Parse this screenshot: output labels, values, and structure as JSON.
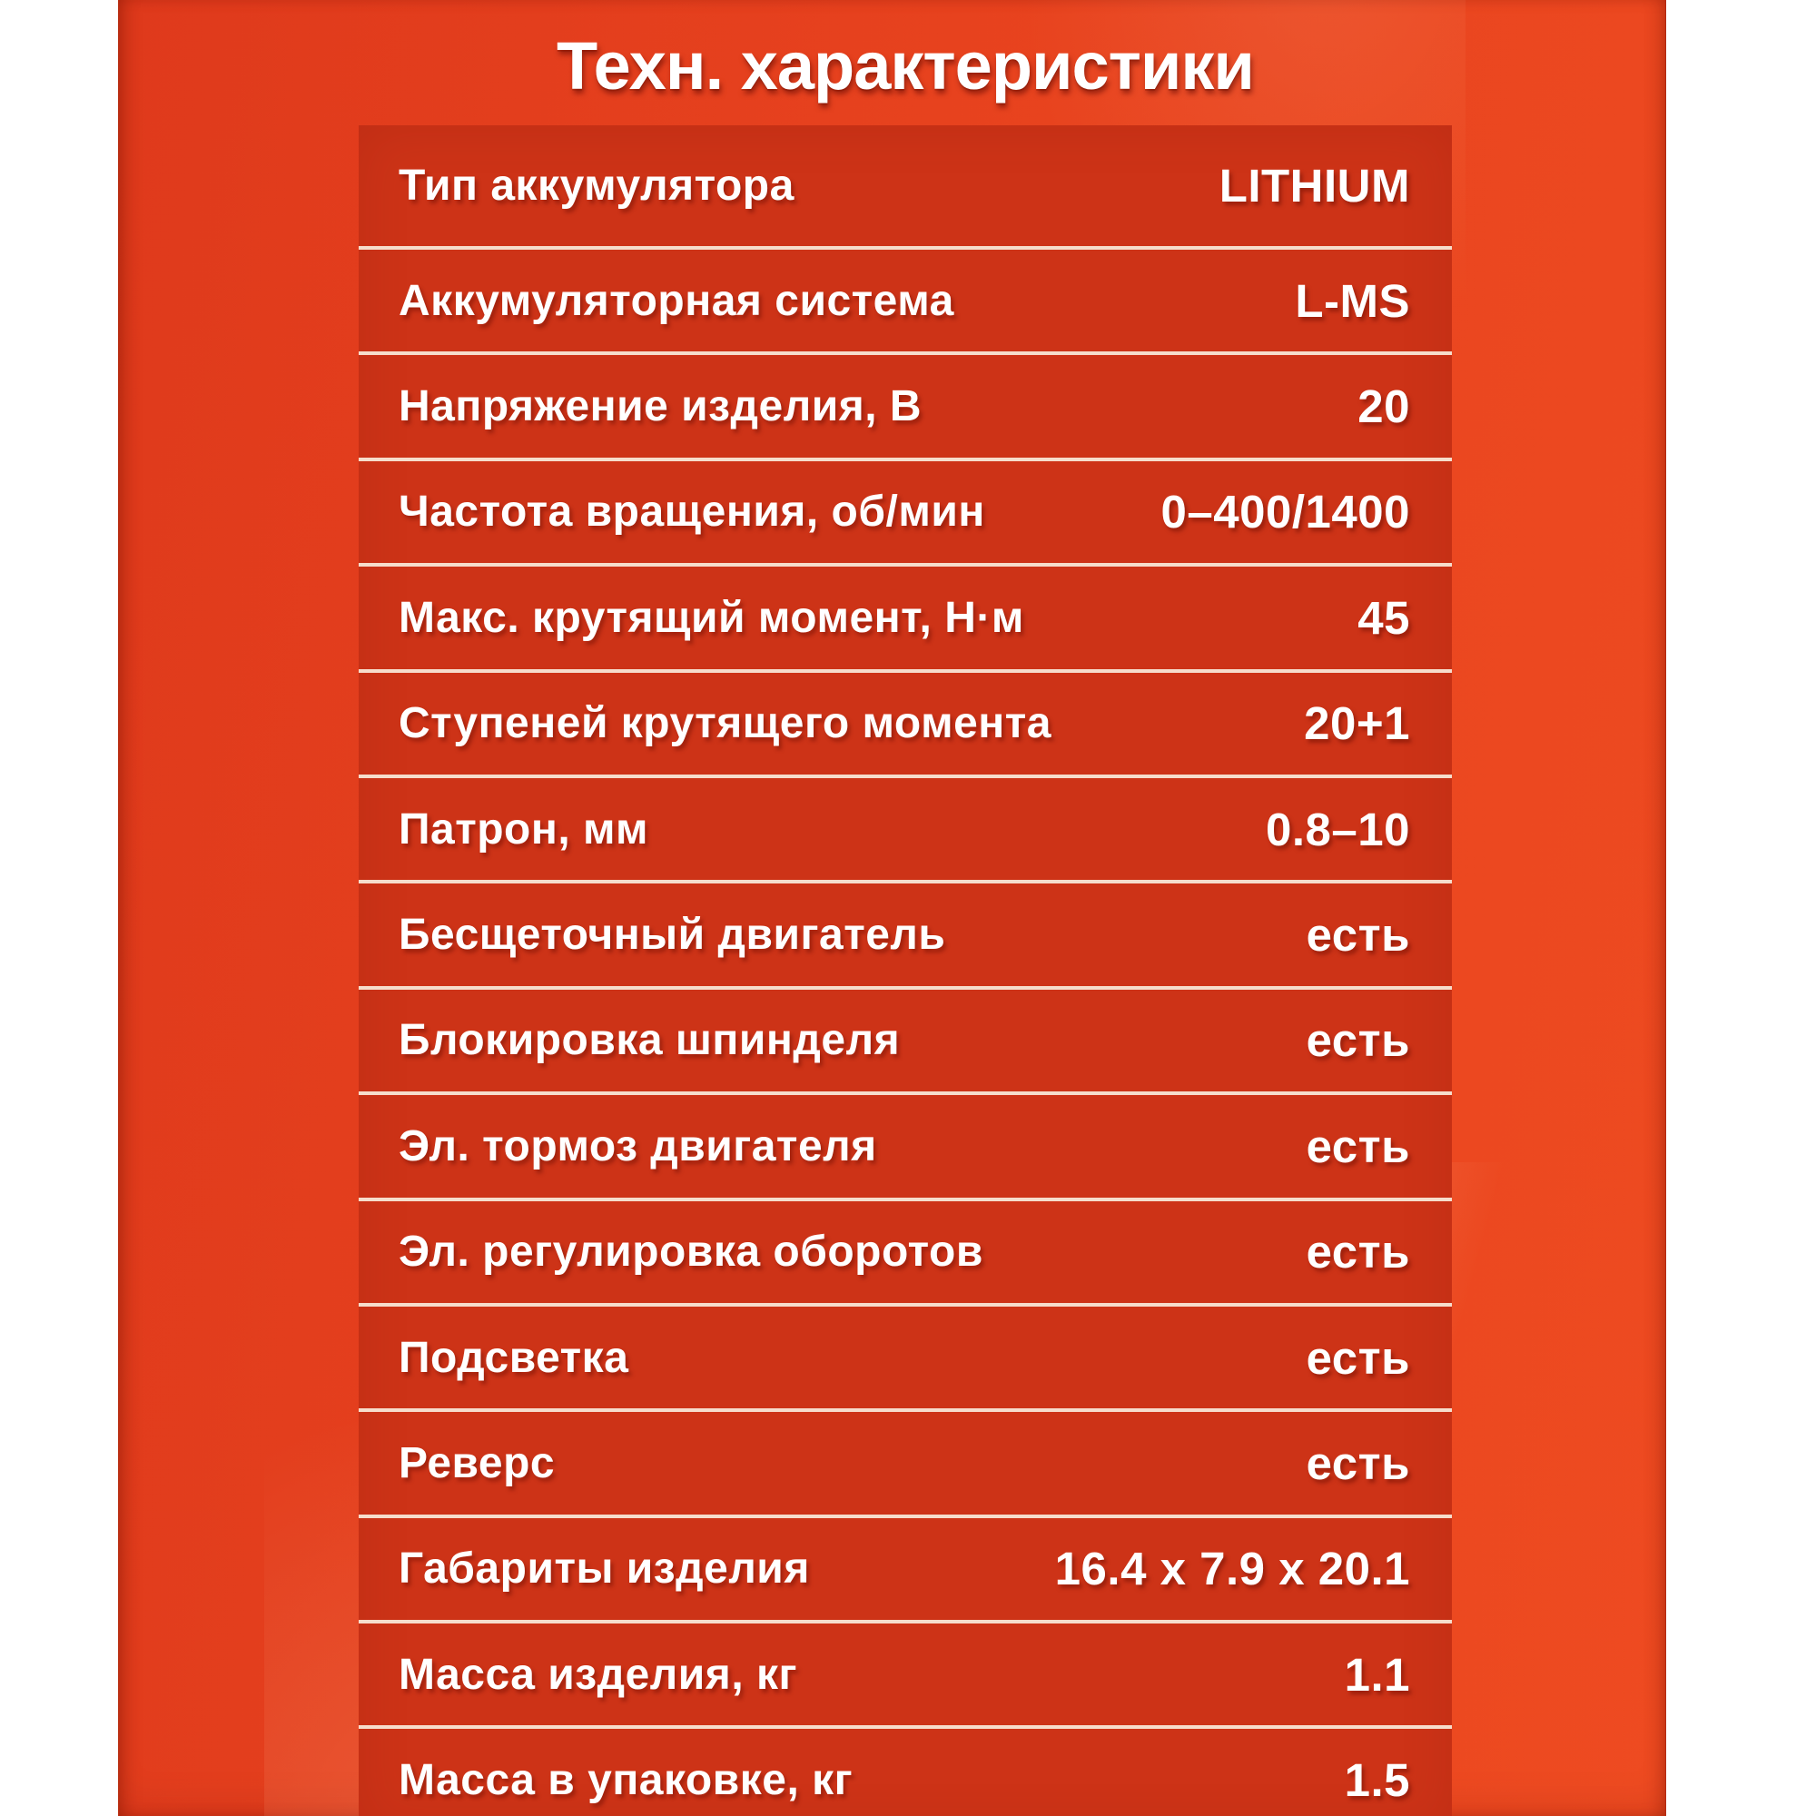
{
  "title": "Техн. характеристики",
  "table": {
    "rows": [
      {
        "label": "Тип аккумулятора",
        "value": "LITHIUM"
      },
      {
        "label": "Аккумуляторная система",
        "value": "L-MS"
      },
      {
        "label": "Напряжение изделия, В",
        "value": "20"
      },
      {
        "label": "Частота вращения, об/мин",
        "value": "0–400/1400"
      },
      {
        "label": "Макс. крутящий момент, Н·м",
        "value": "45"
      },
      {
        "label": "Ступеней крутящего момента",
        "value": "20+1"
      },
      {
        "label": "Патрон, мм",
        "value": "0.8–10"
      },
      {
        "label": "Бесщеточный двигатель",
        "value": "есть"
      },
      {
        "label": "Блокировка шпинделя",
        "value": "есть"
      },
      {
        "label": "Эл. тормоз двигателя",
        "value": "есть"
      },
      {
        "label": "Эл. регулировка оборотов",
        "value": "есть"
      },
      {
        "label": "Подсветка",
        "value": "есть"
      },
      {
        "label": "Реверс",
        "value": "есть"
      },
      {
        "label": "Габариты изделия",
        "value": "16.4 x 7.9 x 20.1"
      },
      {
        "label": "Масса изделия, кг",
        "value": "1.1"
      },
      {
        "label": "Масса в упаковке, кг",
        "value": "1.5"
      }
    ]
  },
  "colors": {
    "page_background": "#ffffff",
    "panel_red": "#e7421e",
    "panel_red_bright": "#ee4b21",
    "panel_red_deep": "#df3a1c",
    "table_red": "#cd3317",
    "separator_color": "#f6ddcc",
    "text_white": "#ffffff"
  }
}
